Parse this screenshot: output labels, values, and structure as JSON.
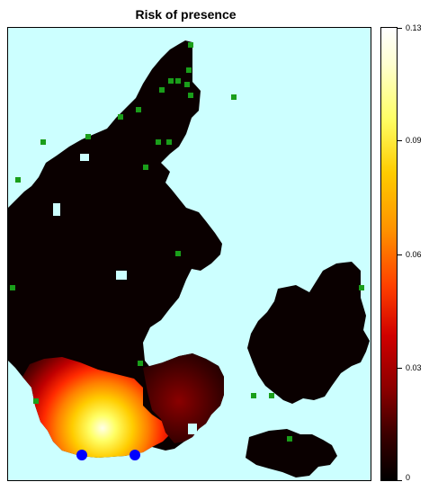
{
  "title": "Risk of presence",
  "colors": {
    "sea": "#ccffff",
    "land_low": "#0a0000",
    "land_risk_scale": [
      "#000000",
      "#3a0000",
      "#7a0000",
      "#c00000",
      "#ff2a00",
      "#ff8000",
      "#ffcc00",
      "#ffff66",
      "#ffffe8"
    ],
    "detection_sites": "#1a9e1a",
    "source_points": "#0000ff",
    "frame": "#000000"
  },
  "legend": {
    "type": "continuous colorbar",
    "min": 0,
    "max": 0.13,
    "tick_labels": [
      "0.13",
      "0.09",
      "0.06",
      "0.03",
      "0"
    ]
  },
  "map": {
    "region": "Denmark",
    "layers": [
      "risk raster",
      "detection sites (green squares)",
      "source points (blue dots)"
    ],
    "source_points_count": 2
  }
}
